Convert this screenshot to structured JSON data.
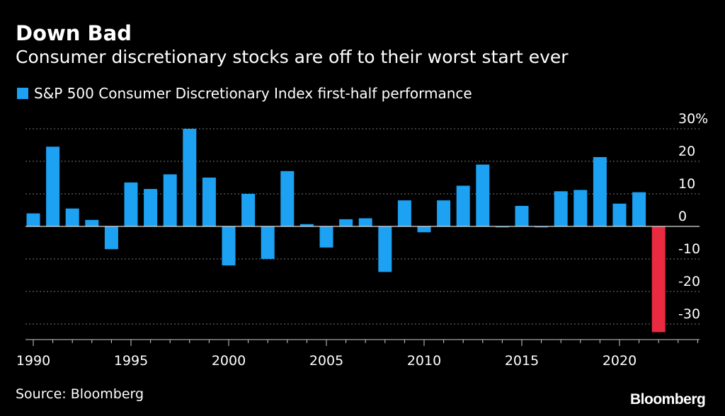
{
  "header": {
    "title": "Down Bad",
    "subtitle": "Consumer discretionary stocks are off to their worst start ever"
  },
  "legend": {
    "label": "S&P 500 Consumer Discretionary Index first-half performance",
    "color": "#1da1f2"
  },
  "footer": {
    "source": "Source: Bloomberg",
    "brand": "Bloomberg"
  },
  "chart_data": {
    "type": "bar",
    "title": "Down Bad",
    "subtitle": "Consumer discretionary stocks are off to their worst start ever",
    "xlabel": "",
    "ylabel": "",
    "ylim": [
      -33,
      30
    ],
    "grid": true,
    "x_ticks": [
      "1990",
      "1995",
      "2000",
      "2005",
      "2010",
      "2015",
      "2020"
    ],
    "y_ticks": [
      {
        "value": 30,
        "label": "30%"
      },
      {
        "value": 20,
        "label": "20"
      },
      {
        "value": 10,
        "label": "10"
      },
      {
        "value": 0,
        "label": "0"
      },
      {
        "value": -10,
        "label": "-10"
      },
      {
        "value": -20,
        "label": "-20"
      },
      {
        "value": -30,
        "label": "-30"
      }
    ],
    "categories": [
      1990,
      1991,
      1992,
      1993,
      1994,
      1995,
      1996,
      1997,
      1998,
      1999,
      2000,
      2001,
      2002,
      2003,
      2004,
      2005,
      2006,
      2007,
      2008,
      2009,
      2010,
      2011,
      2012,
      2013,
      2014,
      2015,
      2016,
      2017,
      2018,
      2019,
      2020,
      2021,
      2022
    ],
    "values": [
      4,
      24.5,
      5.5,
      2,
      -7,
      13.5,
      11.5,
      16,
      30,
      15,
      -12,
      10,
      -10,
      17,
      0.7,
      -6.5,
      2.2,
      2.5,
      -14,
      8,
      -1.8,
      8,
      12.5,
      19,
      -0.3,
      6.3,
      -0.3,
      10.8,
      11.2,
      21.3,
      7,
      10.5,
      -32.5
    ],
    "colors": {
      "positive": "#1da1f2",
      "highlight": "#ea2a40"
    },
    "highlight_category": 2022
  }
}
